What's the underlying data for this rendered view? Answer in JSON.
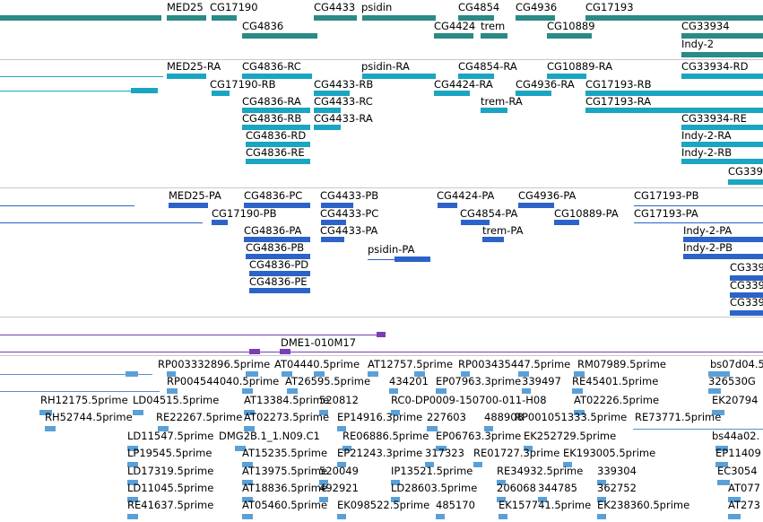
{
  "colors": {
    "gene": "#2a8a86",
    "transcript": "#1aa5c2",
    "protein": "#2d62c8",
    "clone": "#7a3cb8",
    "est": "#5aa0d8",
    "divider": "#c8c8c8"
  },
  "tracks": {
    "gene": {
      "labels": [
        "MED25",
        "CG17190",
        "CG4433",
        "psidin",
        "CG4854",
        "CG4936",
        "CG17193",
        "CG4836",
        "CG4424",
        "trem",
        "CG10889",
        "CG33934",
        "Indy-2"
      ]
    },
    "transcript": {
      "labels": [
        "MED25-RA",
        "CG4836-RC",
        "psidin-RA",
        "CG4854-RA",
        "CG10889-RA",
        "CG33934-RD",
        "CG17190-RB",
        "CG4433-RB",
        "CG4424-RA",
        "CG4936-RA",
        "CG17193-RB",
        "CG4836-RA",
        "CG4433-RC",
        "trem-RA",
        "CG17193-RA",
        "CG4836-RB",
        "CG4433-RA",
        "CG33934-RE",
        "CG4836-RD",
        "Indy-2-RA",
        "CG4836-RE",
        "Indy-2-RB",
        "CG339"
      ]
    },
    "protein": {
      "labels": [
        "MED25-PA",
        "CG4836-PC",
        "CG4433-PB",
        "CG4424-PA",
        "CG4936-PA",
        "CG17193-PB",
        "CG17190-PB",
        "CG4433-PC",
        "CG4854-PA",
        "CG10889-PA",
        "CG17193-PA",
        "CG4836-PA",
        "CG4433-PA",
        "trem-PA",
        "Indy-2-PA",
        "CG4836-PB",
        "psidin-PA",
        "Indy-2-PB",
        "CG4836-PD",
        "CG4836-PE",
        "CG339",
        "CG339",
        "CG339"
      ]
    },
    "clone": {
      "labels": [
        "DME1-010M17"
      ]
    },
    "est": {
      "labels": [
        "RP003332896.5prime",
        "AT04440.5prime",
        "AT12757.5prime",
        "RP003435447.5prime",
        "RM07989.5prime",
        "bs07d04.5",
        "RP004544040.5prime",
        "AT26595.5prime",
        "434201",
        "EP07963.3prime",
        "339497",
        "RE45401.5prime",
        "326530G",
        "RH12175.5prime",
        "LD04515.5prime",
        "AT13384.5prime",
        "520812",
        "RC0-DP0009-150700-011-H08",
        "AT02226.5prime",
        "EK20794",
        "RH52744.5prime",
        "RE22267.5prime",
        "AT02273.5prime",
        "EP14916.3prime",
        "227603",
        "488908",
        "RP001051333.5prime",
        "RE73771.5prime",
        "LD11547.5prime",
        "DMG2B.1_1.N09.C1",
        "RE06886.5prime",
        "EP06763.3prime",
        "EK252729.5prime",
        "bs44a02.",
        "LP19545.5prime",
        "AT15235.5prime",
        "EP21243.3prime",
        "317323",
        "RE01727.3prime",
        "EK193005.5prime",
        "EP11409",
        "LD17319.5prime",
        "AT13975.5prime",
        "520049",
        "IP13521.5prime",
        "RE34932.5prime",
        "339304",
        "EC3054",
        "LD11045.5prime",
        "AT18836.5prime",
        "492921",
        "LD28603.5prime",
        "206068",
        "344785",
        "362752",
        "AT077",
        "RE41637.5prime",
        "AT05460.5prime",
        "EK098522.5prime",
        "485170",
        "EK157741.5prime",
        "EK238360.5prime",
        "AT273"
      ]
    }
  }
}
